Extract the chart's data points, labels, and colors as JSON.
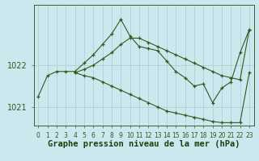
{
  "background_color": "#cce8ee",
  "grid_color": "#aacccc",
  "line_color": "#2d5a1e",
  "title": "Graphe pression niveau de la mer (hPa)",
  "title_fontsize": 7.5,
  "ylabel_fontsize": 7,
  "xtick_fontsize": 5.5,
  "ylim": [
    1020.55,
    1023.45
  ],
  "xlim": [
    -0.5,
    23.5
  ],
  "yticks": [
    1021,
    1022
  ],
  "xtick_labels": [
    "0",
    "1",
    "2",
    "3",
    "4",
    "5",
    "6",
    "7",
    "8",
    "9",
    "10",
    "11",
    "12",
    "13",
    "14",
    "15",
    "16",
    "17",
    "18",
    "19",
    "20",
    "21",
    "22",
    "23"
  ],
  "line1_x": [
    0,
    1,
    2,
    3,
    4,
    5,
    6,
    7,
    8,
    9,
    10,
    11,
    12,
    13,
    14,
    15,
    16,
    17,
    18,
    19,
    20,
    21,
    22,
    23
  ],
  "line1_y": [
    1021.25,
    1021.75,
    1021.85,
    1021.85,
    1021.85,
    1022.05,
    1022.25,
    1022.5,
    1022.75,
    1023.1,
    1022.7,
    1022.45,
    1022.4,
    1022.35,
    1022.1,
    1021.85,
    1021.7,
    1021.5,
    1021.55,
    1021.1,
    1021.45,
    1021.6,
    1022.3,
    1022.85
  ],
  "line2_x": [
    4,
    5,
    6,
    7,
    8,
    9,
    10,
    11,
    12,
    13,
    14,
    15,
    16,
    17,
    18,
    19,
    20,
    21,
    22,
    23
  ],
  "line2_y": [
    1021.82,
    1021.9,
    1022.0,
    1022.15,
    1022.3,
    1022.5,
    1022.65,
    1022.65,
    1022.55,
    1022.45,
    1022.35,
    1022.25,
    1022.15,
    1022.05,
    1021.95,
    1021.85,
    1021.75,
    1021.7,
    1021.65,
    1022.85
  ],
  "line3_x": [
    4,
    5,
    6,
    7,
    8,
    9,
    10,
    11,
    12,
    13,
    14,
    15,
    16,
    17,
    18,
    19,
    20,
    21,
    22,
    23
  ],
  "line3_y": [
    1021.82,
    1021.75,
    1021.7,
    1021.6,
    1021.5,
    1021.4,
    1021.3,
    1021.2,
    1021.1,
    1021.0,
    1020.9,
    1020.85,
    1020.8,
    1020.75,
    1020.7,
    1020.65,
    1020.62,
    1020.62,
    1020.62,
    1021.82
  ]
}
